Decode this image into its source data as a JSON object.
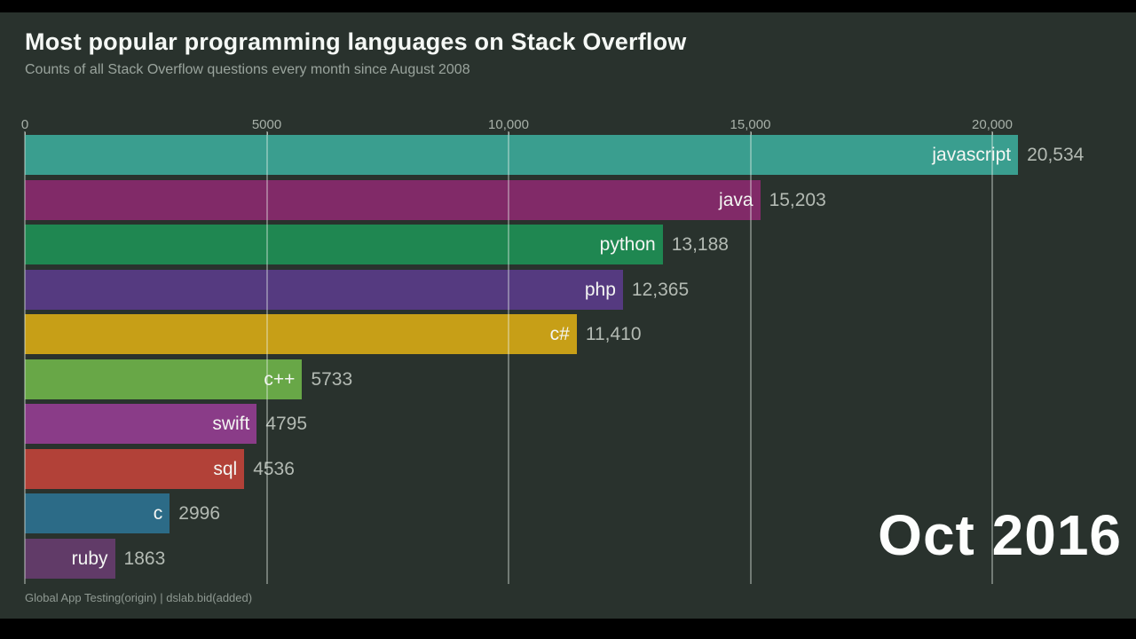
{
  "page": {
    "title": "Most popular programming languages on Stack Overflow",
    "subtitle": "Counts of all Stack Overflow questions every month since August 2008",
    "footer": "Global App Testing(origin) | dslab.bid(added)"
  },
  "colors": {
    "background": "#29322d",
    "letterbox": "#000000",
    "gridline": "rgba(233,243,236,0.38)",
    "title_text": "#f5f8f5",
    "subtitle_text": "#9aa49d",
    "axis_text": "#a7b0a8",
    "value_text": "#b3bab3",
    "bar_label_text": "#f4f6f3"
  },
  "chart_data": {
    "type": "bar",
    "orientation": "horizontal",
    "title": "Most popular programming languages on Stack Overflow",
    "subtitle": "Counts of all Stack Overflow questions every month since August 2008",
    "frame_label": "Oct 2016",
    "categories": [
      "javascript",
      "java",
      "python",
      "php",
      "c#",
      "c++",
      "swift",
      "sql",
      "c",
      "ruby"
    ],
    "values": [
      20534,
      15203,
      13188,
      12365,
      11410,
      5733,
      4795,
      4536,
      2996,
      1863
    ],
    "value_labels": [
      "20,534",
      "15,203",
      "13,188",
      "12,365",
      "11,410",
      "5733",
      "4795",
      "4536",
      "2996",
      "1863"
    ],
    "bar_colors": [
      "#3a9e8f",
      "#812a68",
      "#1f8751",
      "#553a80",
      "#c79f17",
      "#68a747",
      "#8a3c88",
      "#b24138",
      "#2c6b87",
      "#613b68"
    ],
    "xlabel": "",
    "ylabel": "",
    "xlim": [
      0,
      22000
    ],
    "x_ticks": [
      0,
      5000,
      10000,
      15000,
      20000
    ],
    "x_tick_labels": [
      "0",
      "5000",
      "10,000",
      "15,000",
      "20,000"
    ],
    "grid": true,
    "legend": false
  }
}
